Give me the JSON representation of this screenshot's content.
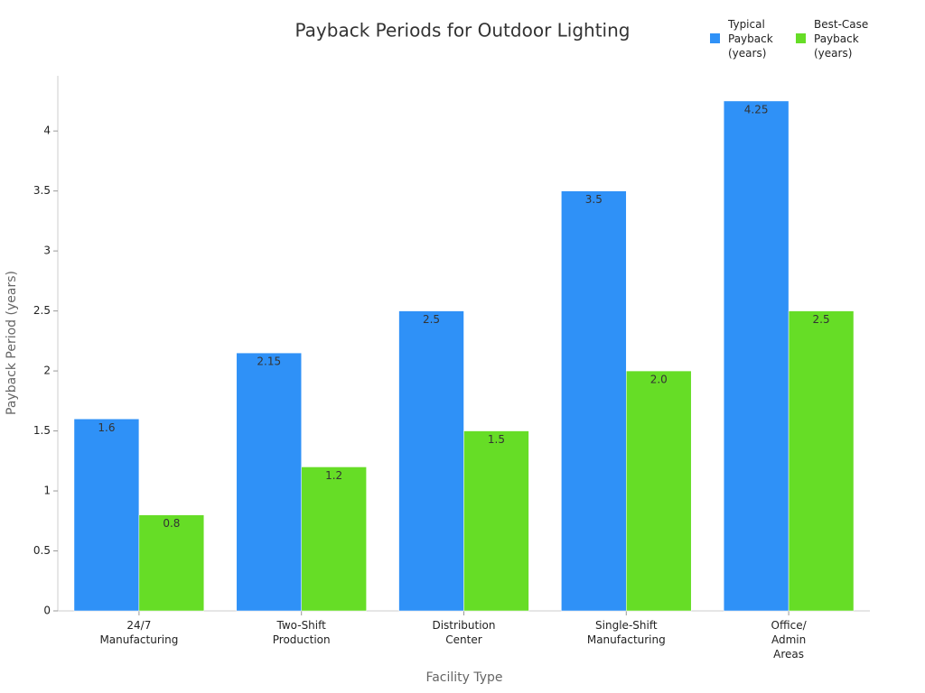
{
  "chart_data": {
    "type": "bar",
    "title": "Payback Periods for Outdoor Lighting",
    "x_label": "Facility Type",
    "y_label": "Payback Period (years)",
    "categories": [
      "24/7\nManufacturing",
      "Two-Shift\nProduction",
      "Distribution\nCenter",
      "Single-Shift\nManufacturing",
      "Office/\nAdmin\nAreas"
    ],
    "series": [
      {
        "name": "Typical\nPayback\n(years)",
        "color": "#2f91f7",
        "values": [
          1.6,
          2.15,
          2.5,
          3.5,
          4.25
        ]
      },
      {
        "name": "Best-Case\nPayback\n(years)",
        "color": "#66dd26",
        "values": [
          0.8,
          1.2,
          1.5,
          2,
          2.5
        ],
        "value_labels": [
          "0.8",
          "1.2",
          "1.5",
          "2.0",
          "2.5"
        ]
      }
    ],
    "ylim": [
      0,
      4.46
    ],
    "yticks": [
      0,
      0.5,
      1,
      1.5,
      2,
      2.5,
      3,
      3.5,
      4
    ],
    "grid": false,
    "legend": "top-right"
  }
}
